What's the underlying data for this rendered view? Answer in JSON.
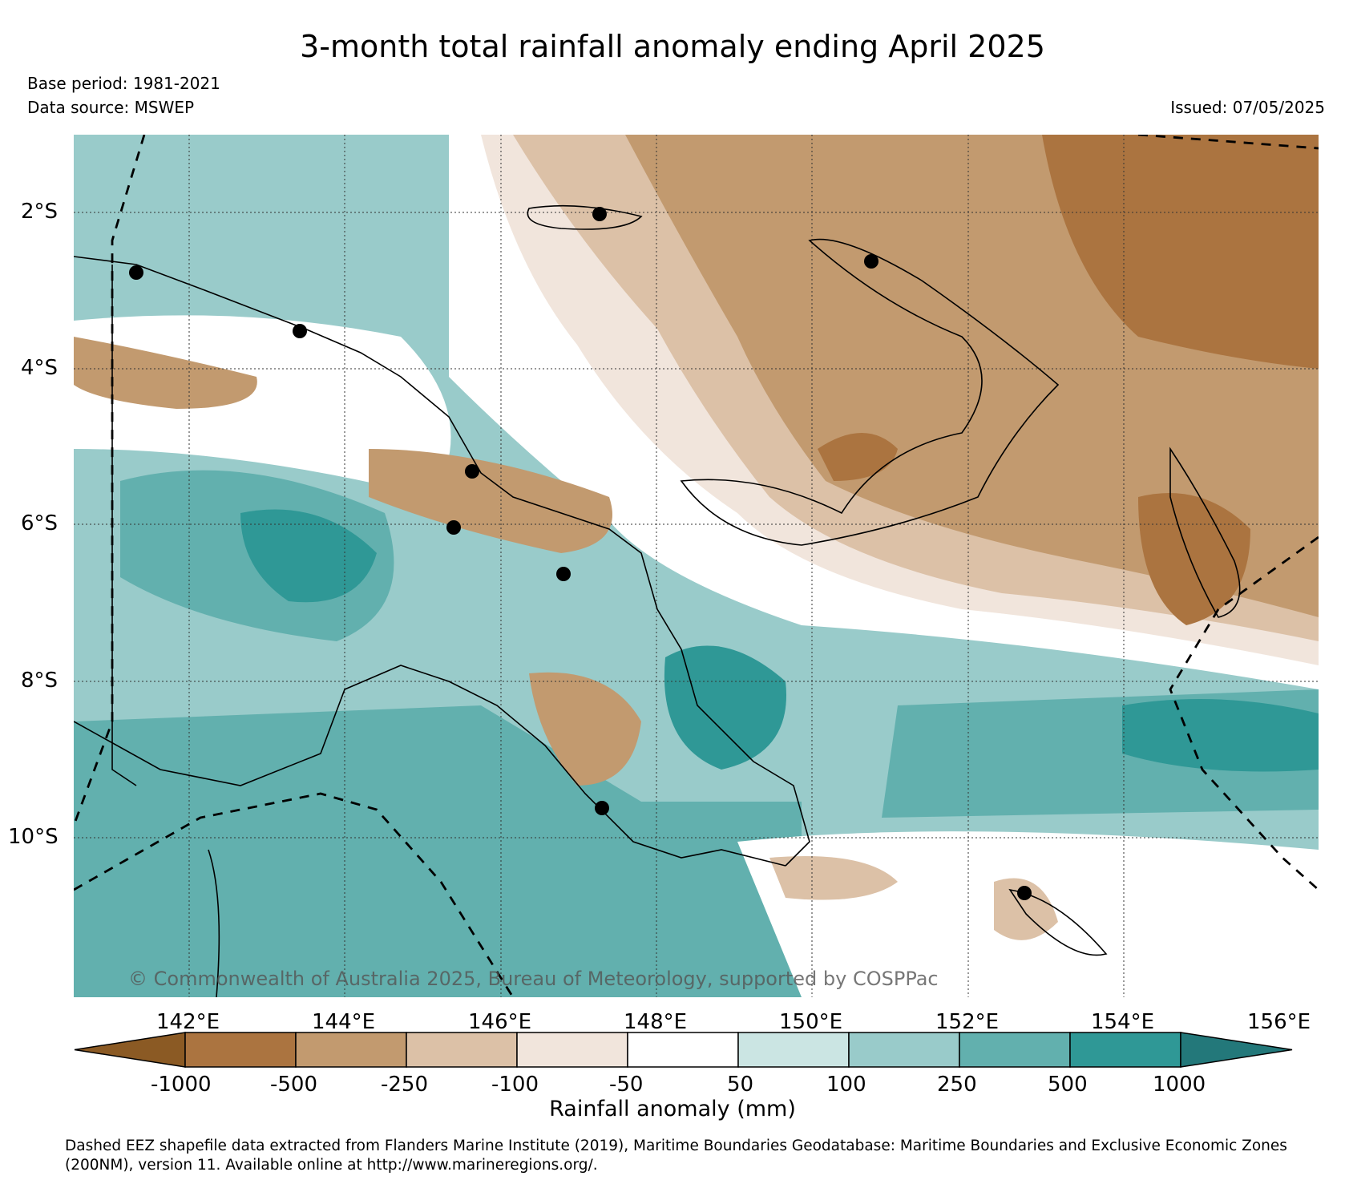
{
  "title": "3-month total rainfall anomaly ending April 2025",
  "base_period": "Base period: 1981-2021",
  "data_source": "Data source: MSWEP",
  "issued": "Issued: 07/05/2025",
  "copyright": "© Commonwealth of Australia 2025, Bureau of Meteorology, supported by COSPPac",
  "map": {
    "lat_labels": [
      "2°S",
      "4°S",
      "6°S",
      "8°S",
      "10°S"
    ],
    "lon_labels": [
      "142°E",
      "144°E",
      "146°E",
      "148°E",
      "150°E",
      "152°E",
      "154°E",
      "156°E"
    ],
    "lon_range": [
      140.5,
      156.5
    ],
    "lat_range": [
      -12.0,
      -1.0
    ]
  },
  "colorbar": {
    "title": "Rainfall anomaly (mm)",
    "ticks": [
      "-1000",
      "-500",
      "-250",
      "-100",
      "-50",
      "50",
      "100",
      "250",
      "500",
      "1000"
    ],
    "colors": [
      "#8b5a24",
      "#ab7440",
      "#c29a6f",
      "#dcc1a7",
      "#f1e5dc",
      "#ffffff",
      "#cbe5e3",
      "#99cbca",
      "#62b0ae",
      "#2f9896",
      "#23787a"
    ]
  },
  "footer": {
    "line1": "Dashed EEZ shapefile data extracted from Flanders Marine Institute (2019), Maritime Boundaries Geodatabase: Maritime Boundaries and Exclusive Economic Zones",
    "line2": "(200NM), version 11. Available online at http://www.marineregions.org/."
  }
}
